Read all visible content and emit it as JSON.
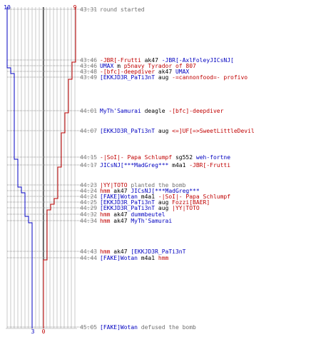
{
  "chart_data": {
    "type": "line",
    "title": "",
    "xlabel": "",
    "ylabel": "",
    "counters": {
      "blue_start": "10",
      "red_start": "9",
      "blue_end": "3",
      "red_end": "0"
    },
    "colors": {
      "blue": "#0000c0",
      "red": "#c00000",
      "grid": "#c8c8c8",
      "time": "#808080",
      "neutral": "#000000",
      "info": "#707070"
    },
    "series": [
      {
        "team": "blue",
        "players_alive_steps": [
          10,
          10,
          9,
          9,
          8,
          8,
          8,
          7,
          6,
          5,
          4,
          3,
          3
        ]
      },
      {
        "team": "red",
        "players_alive_steps": [
          9,
          8,
          7,
          6,
          6,
          5,
          4,
          3,
          2,
          1,
          0,
          0
        ]
      }
    ],
    "events": [
      {
        "time": "43:31",
        "kind": "info",
        "parts": [
          {
            "t": "round started",
            "c": "info"
          }
        ]
      },
      {
        "time": "43:46",
        "kind": "kill",
        "parts": [
          {
            "t": "-JBR[-Frutti",
            "c": "red"
          },
          {
            "t": " ak47 ",
            "c": "neutral"
          },
          {
            "t": "-JBR[-AxlFoleyJICsNJ[",
            "c": "blue"
          }
        ]
      },
      {
        "time": "43:46",
        "kind": "kill",
        "parts": [
          {
            "t": "UMAX",
            "c": "blue"
          },
          {
            "t": " m ",
            "c": "neutral"
          },
          {
            "t": "p5navy Tyrador of 807",
            "c": "red"
          }
        ]
      },
      {
        "time": "43:48",
        "kind": "kill",
        "parts": [
          {
            "t": "-[bfc]-deepdiver",
            "c": "red"
          },
          {
            "t": " ak47 ",
            "c": "neutral"
          },
          {
            "t": "UMAX",
            "c": "blue"
          }
        ]
      },
      {
        "time": "43:49",
        "kind": "kill",
        "parts": [
          {
            "t": "[EKKJD3R_PaTi3nT",
            "c": "blue"
          },
          {
            "t": " aug ",
            "c": "neutral"
          },
          {
            "t": "-=cannonfood=- profivo",
            "c": "red"
          }
        ]
      },
      {
        "time": "44:01",
        "kind": "kill",
        "parts": [
          {
            "t": "MyTh'Samurai",
            "c": "blue"
          },
          {
            "t": " deagle ",
            "c": "neutral"
          },
          {
            "t": "-[bfc]-deepdiver",
            "c": "red"
          }
        ]
      },
      {
        "time": "44:07",
        "kind": "kill",
        "parts": [
          {
            "t": "[EKKJD3R_PaTi3nT",
            "c": "blue"
          },
          {
            "t": " aug ",
            "c": "neutral"
          },
          {
            "t": "<=]UF[=>SweetLittleDevil",
            "c": "red"
          }
        ]
      },
      {
        "time": "44:15",
        "kind": "kill",
        "parts": [
          {
            "t": "-|SoI|- Papa Schlumpf",
            "c": "red"
          },
          {
            "t": "  sg552 ",
            "c": "neutral"
          },
          {
            "t": "weh-fortne",
            "c": "blue"
          }
        ]
      },
      {
        "time": "44:17",
        "kind": "kill",
        "parts": [
          {
            "t": "JICsNJ[***MadGreg***",
            "c": "blue"
          },
          {
            "t": " m4a1 ",
            "c": "neutral"
          },
          {
            "t": "-JBR[-Frutti",
            "c": "red"
          }
        ]
      },
      {
        "time": "44:23",
        "kind": "info",
        "parts": [
          {
            "t": "|YY|TOTO",
            "c": "red"
          },
          {
            "t": " planted the bomb",
            "c": "info"
          }
        ]
      },
      {
        "time": "44:24",
        "kind": "kill",
        "parts": [
          {
            "t": "hmm",
            "c": "red"
          },
          {
            "t": " ak47 ",
            "c": "neutral"
          },
          {
            "t": "JICsNJ[***MadGreg***",
            "c": "blue"
          }
        ]
      },
      {
        "time": "44:24",
        "kind": "kill",
        "parts": [
          {
            "t": "[FAKE]Wotan",
            "c": "blue"
          },
          {
            "t": " m4a1 ",
            "c": "neutral"
          },
          {
            "t": "-|SoI|- Papa Schlumpf",
            "c": "red"
          }
        ]
      },
      {
        "time": "44:25",
        "kind": "kill",
        "parts": [
          {
            "t": "[EKKJD3R_PaTi3nT",
            "c": "blue"
          },
          {
            "t": " aug ",
            "c": "neutral"
          },
          {
            "t": "Fozzi[BAER]",
            "c": "red"
          }
        ]
      },
      {
        "time": "44:29",
        "kind": "kill",
        "parts": [
          {
            "t": "[EKKJD3R_PaTi3nT",
            "c": "blue"
          },
          {
            "t": " aug ",
            "c": "neutral"
          },
          {
            "t": "|YY|TOTO",
            "c": "red"
          }
        ]
      },
      {
        "time": "44:32",
        "kind": "kill",
        "parts": [
          {
            "t": "hmm",
            "c": "red"
          },
          {
            "t": " ak47 ",
            "c": "neutral"
          },
          {
            "t": "dummbeutel",
            "c": "blue"
          }
        ]
      },
      {
        "time": "44:34",
        "kind": "kill",
        "parts": [
          {
            "t": "hmm",
            "c": "red"
          },
          {
            "t": " ak47 ",
            "c": "neutral"
          },
          {
            "t": "MyTh'Samurai",
            "c": "blue"
          }
        ]
      },
      {
        "time": "44:43",
        "kind": "kill",
        "parts": [
          {
            "t": "hmm",
            "c": "red"
          },
          {
            "t": " ak47 ",
            "c": "neutral"
          },
          {
            "t": "[EKKJD3R_PaTi3nT",
            "c": "blue"
          }
        ]
      },
      {
        "time": "44:44",
        "kind": "kill",
        "parts": [
          {
            "t": "[FAKE]Wotan",
            "c": "blue"
          },
          {
            "t": " m4a1 ",
            "c": "neutral"
          },
          {
            "t": "hmm",
            "c": "red"
          }
        ]
      },
      {
        "time": "45:05",
        "kind": "info",
        "parts": [
          {
            "t": "[FAKE]Wotan",
            "c": "blue"
          },
          {
            "t": " defused the bomb",
            "c": "info"
          }
        ]
      }
    ]
  }
}
